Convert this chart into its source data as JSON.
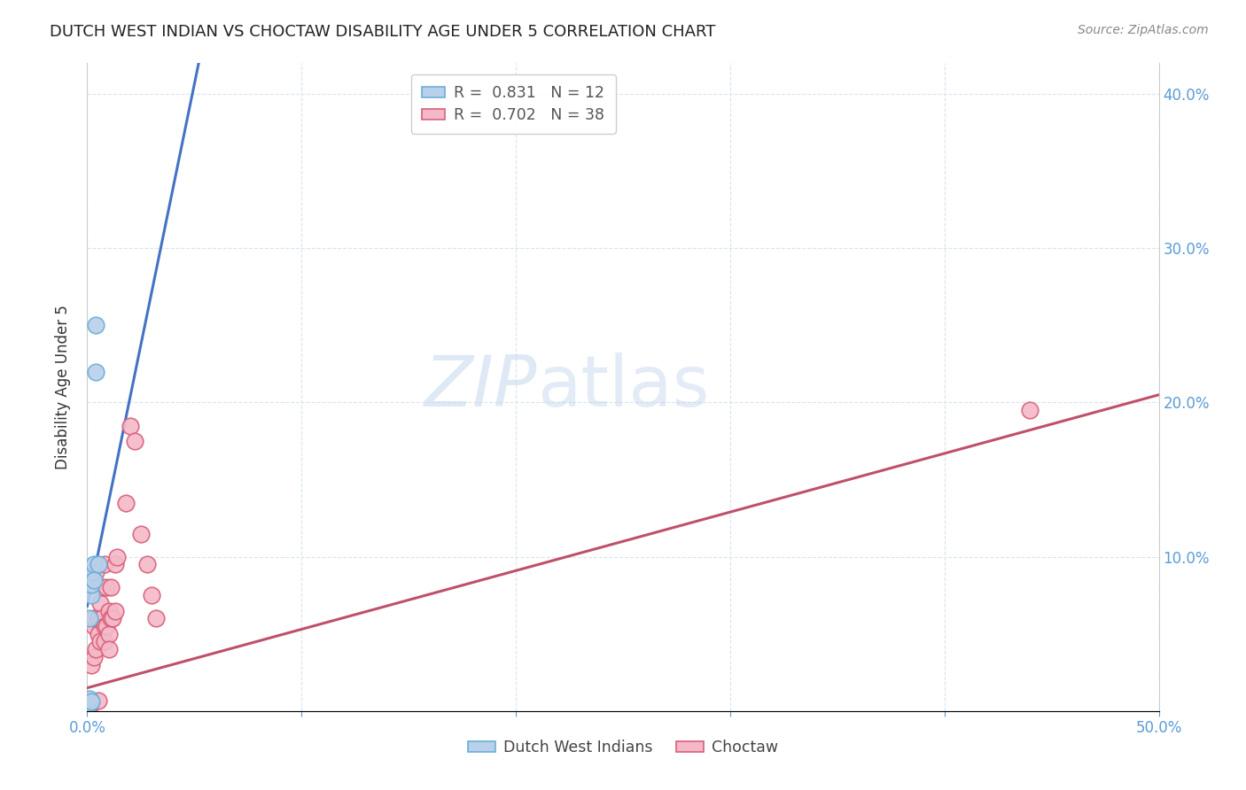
{
  "title": "DUTCH WEST INDIAN VS CHOCTAW DISABILITY AGE UNDER 5 CORRELATION CHART",
  "source": "Source: ZipAtlas.com",
  "ylabel": "Disability Age Under 5",
  "xlim": [
    0.0,
    0.5
  ],
  "ylim": [
    0.0,
    0.42
  ],
  "xticks": [
    0.0,
    0.1,
    0.2,
    0.3,
    0.4,
    0.5
  ],
  "yticks": [
    0.0,
    0.1,
    0.2,
    0.3,
    0.4
  ],
  "xticklabels": [
    "0.0%",
    "",
    "",
    "",
    "",
    "50.0%"
  ],
  "yticklabels_right": [
    "",
    "10.0%",
    "20.0%",
    "30.0%",
    "40.0%"
  ],
  "blue_color": "#b8d0ea",
  "blue_edge_color": "#6baed6",
  "pink_color": "#f4b8c8",
  "pink_edge_color": "#d9607a",
  "line_blue": "#4472c4",
  "line_pink": "#c0506a",
  "legend_blue_r": "0.831",
  "legend_blue_n": "12",
  "legend_pink_r": "0.702",
  "legend_pink_n": "38",
  "legend_label_blue": "Dutch West Indians",
  "legend_label_pink": "Choctaw",
  "watermark_zip": "ZIP",
  "watermark_atlas": "atlas",
  "dutch_x": [
    0.001,
    0.001,
    0.001,
    0.002,
    0.002,
    0.002,
    0.002,
    0.003,
    0.003,
    0.004,
    0.004,
    0.005
  ],
  "dutch_y": [
    0.005,
    0.008,
    0.06,
    0.006,
    0.075,
    0.082,
    0.09,
    0.095,
    0.085,
    0.22,
    0.25,
    0.095
  ],
  "choctaw_x": [
    0.001,
    0.001,
    0.002,
    0.002,
    0.003,
    0.003,
    0.003,
    0.004,
    0.004,
    0.005,
    0.005,
    0.005,
    0.006,
    0.006,
    0.007,
    0.007,
    0.008,
    0.008,
    0.008,
    0.009,
    0.009,
    0.01,
    0.01,
    0.01,
    0.011,
    0.011,
    0.012,
    0.013,
    0.013,
    0.014,
    0.018,
    0.02,
    0.022,
    0.025,
    0.028,
    0.03,
    0.032,
    0.44
  ],
  "choctaw_y": [
    0.003,
    0.005,
    0.005,
    0.03,
    0.035,
    0.055,
    0.06,
    0.04,
    0.09,
    0.007,
    0.05,
    0.06,
    0.045,
    0.07,
    0.06,
    0.08,
    0.045,
    0.055,
    0.095,
    0.055,
    0.08,
    0.05,
    0.065,
    0.04,
    0.06,
    0.08,
    0.06,
    0.095,
    0.065,
    0.1,
    0.135,
    0.185,
    0.175,
    0.115,
    0.095,
    0.075,
    0.06,
    0.195
  ],
  "blue_line_x0": 0.0,
  "blue_line_y0": 0.068,
  "blue_line_x1": 0.052,
  "blue_line_y1": 0.42,
  "pink_line_x0": 0.0,
  "pink_line_y0": 0.015,
  "pink_line_x1": 0.5,
  "pink_line_y1": 0.205
}
